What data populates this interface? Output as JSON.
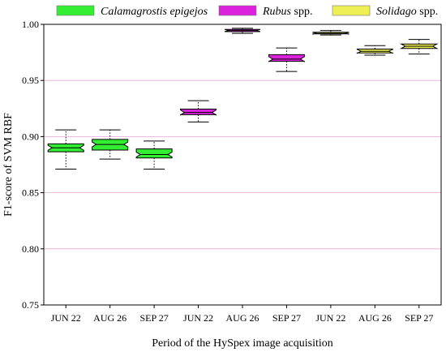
{
  "chart_data": {
    "type": "box",
    "title": "",
    "xlabel": "Period of the HySpex image acquisition",
    "ylabel": "F1-score of SVM RBF",
    "ylim": [
      0.75,
      1.0
    ],
    "yticks": [
      "0.75",
      "0.80",
      "0.85",
      "0.90",
      "0.95",
      "1.00"
    ],
    "ytick_values": [
      0.75,
      0.8,
      0.85,
      0.9,
      0.95,
      1.0
    ],
    "categories": [
      "JUN 22",
      "AUG 26",
      "SEP 27",
      "JUN 22",
      "AUG 26",
      "SEP 27",
      "JUN 22",
      "AUG 26",
      "SEP 27"
    ],
    "grid": "horizontal",
    "legend_position": "top",
    "series": [
      {
        "name_italic": "Calamagrostis epigejos",
        "name_suffix": "",
        "color": "#33ee33",
        "boxes": [
          {
            "category": "JUN 22",
            "min": 0.871,
            "q1": 0.8865,
            "median": 0.89,
            "q3": 0.8935,
            "max": 0.906
          },
          {
            "category": "AUG 26",
            "min": 0.88,
            "q1": 0.888,
            "median": 0.893,
            "q3": 0.8975,
            "max": 0.906
          },
          {
            "category": "SEP 27",
            "min": 0.871,
            "q1": 0.881,
            "median": 0.884,
            "q3": 0.889,
            "max": 0.896
          }
        ]
      },
      {
        "name_italic": "Rubus",
        "name_suffix": " spp.",
        "color": "#dd22dd",
        "boxes": [
          {
            "category": "JUN 22",
            "min": 0.913,
            "q1": 0.9195,
            "median": 0.9215,
            "q3": 0.9245,
            "max": 0.932
          },
          {
            "category": "AUG 26",
            "min": 0.992,
            "q1": 0.9935,
            "median": 0.9945,
            "q3": 0.9955,
            "max": 0.9965
          },
          {
            "category": "SEP 27",
            "min": 0.958,
            "q1": 0.967,
            "median": 0.969,
            "q3": 0.973,
            "max": 0.979
          }
        ]
      },
      {
        "name_italic": "Solidago",
        "name_suffix": " spp.",
        "color": "#eeee55",
        "boxes": [
          {
            "category": "JUN 22",
            "min": 0.9905,
            "q1": 0.9915,
            "median": 0.992,
            "q3": 0.993,
            "max": 0.9945
          },
          {
            "category": "AUG 26",
            "min": 0.9725,
            "q1": 0.9745,
            "median": 0.976,
            "q3": 0.978,
            "max": 0.981
          },
          {
            "category": "SEP 27",
            "min": 0.9735,
            "q1": 0.9785,
            "median": 0.9805,
            "q3": 0.9825,
            "max": 0.9865
          }
        ]
      }
    ]
  }
}
